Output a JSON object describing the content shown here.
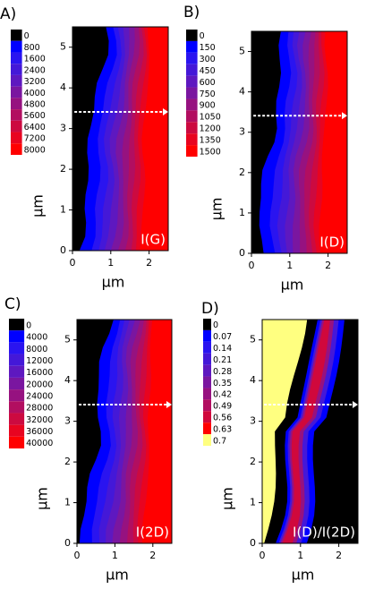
{
  "chart_data": [
    {
      "type": "contour",
      "panel": "A)",
      "annotation": "I(G)",
      "xlabel": "μm",
      "ylabel": "μm",
      "xlim": [
        0,
        2.5
      ],
      "xticks": [
        0,
        1,
        2
      ],
      "ylim": [
        0,
        5.5
      ],
      "yticks": [
        0,
        1,
        2,
        3,
        4,
        5
      ],
      "levels": [
        0,
        800,
        1600,
        2400,
        3200,
        4000,
        4800,
        5600,
        6400,
        7200,
        8000
      ],
      "colors": [
        "#000000",
        "#0000ff",
        "#2a14f0",
        "#4418d8",
        "#5e18c0",
        "#7a16a0",
        "#961280",
        "#b20e60",
        "#cc0a40",
        "#e80420",
        "#ff0000"
      ]
    },
    {
      "type": "contour",
      "panel": "B)",
      "annotation": "I(D)",
      "xlabel": "μm",
      "ylabel": "μm",
      "xlim": [
        0,
        2.5
      ],
      "xticks": [
        0,
        1,
        2
      ],
      "ylim": [
        0,
        5.5
      ],
      "yticks": [
        0,
        1,
        2,
        3,
        4,
        5
      ],
      "levels": [
        0,
        150,
        300,
        450,
        600,
        750,
        900,
        1050,
        1200,
        1350,
        1500
      ],
      "colors": [
        "#000000",
        "#0000ff",
        "#2a14f0",
        "#4418d8",
        "#5e18c0",
        "#7a16a0",
        "#961280",
        "#b20e60",
        "#cc0a40",
        "#e80420",
        "#ff0000"
      ]
    },
    {
      "type": "contour",
      "panel": "C)",
      "annotation": "I(2D)",
      "xlabel": "μm",
      "ylabel": "μm",
      "xlim": [
        0,
        2.5
      ],
      "xticks": [
        0,
        1,
        2
      ],
      "ylim": [
        0,
        5.5
      ],
      "yticks": [
        0,
        1,
        2,
        3,
        4,
        5
      ],
      "levels": [
        0,
        4000,
        8000,
        12000,
        16000,
        20000,
        24000,
        28000,
        32000,
        36000,
        40000
      ],
      "colors": [
        "#000000",
        "#0000ff",
        "#2a14f0",
        "#4418d8",
        "#5e18c0",
        "#7a16a0",
        "#961280",
        "#b20e60",
        "#cc0a40",
        "#e80420",
        "#ff0000"
      ]
    },
    {
      "type": "contour",
      "panel": "D)",
      "annotation": "I(D)/I(2D)",
      "xlabel": "μm",
      "ylabel": "μm",
      "xlim": [
        0,
        2.5
      ],
      "xticks": [
        0,
        1,
        2
      ],
      "ylim": [
        0,
        5.5
      ],
      "yticks": [
        0,
        1,
        2,
        3,
        4,
        5
      ],
      "levels": [
        0,
        0.07,
        0.14,
        0.21,
        0.28,
        0.35,
        0.42,
        0.49,
        0.56,
        0.63,
        0.7
      ],
      "colors": [
        "#000000",
        "#0000ff",
        "#2a14f0",
        "#4418d8",
        "#5e18c0",
        "#7a16a0",
        "#961280",
        "#b20e60",
        "#d0083c",
        "#ff0000",
        "#ffff80"
      ]
    }
  ]
}
